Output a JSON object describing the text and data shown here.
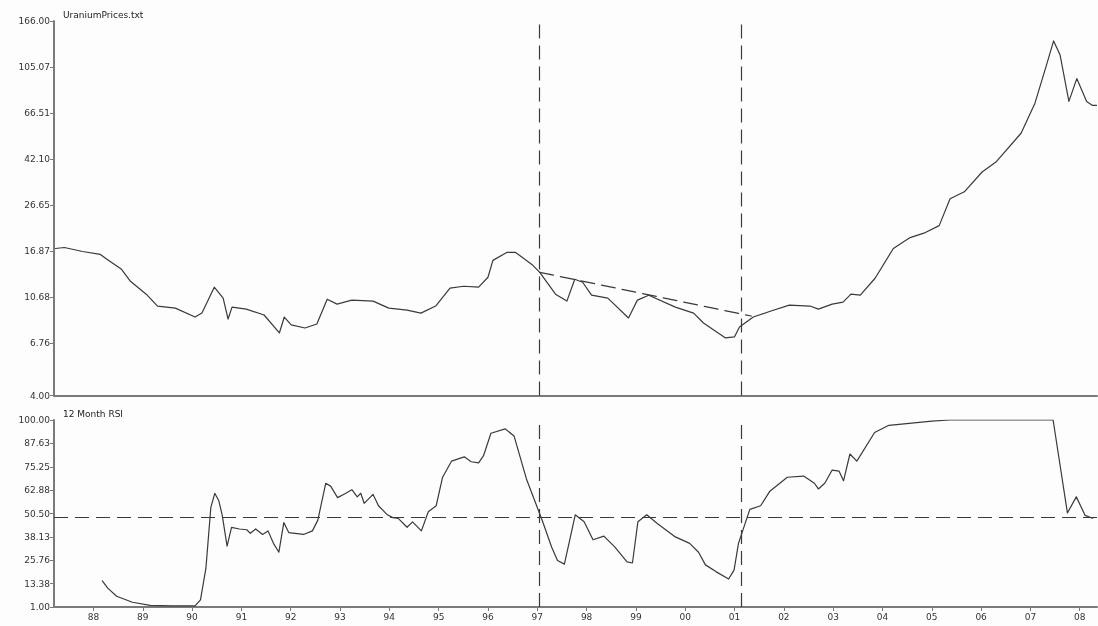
{
  "chart_data": [
    {
      "type": "line",
      "title": "UraniumPrices.txt",
      "log": "y",
      "grid": false,
      "marker": "none",
      "tick_labels": "y",
      "xlim": [
        1987.2,
        2008.35
      ],
      "ylim": [
        4,
        166
      ],
      "yticks": [
        {
          "value": 4,
          "label": "4.00"
        },
        {
          "value": 6.76,
          "label": "6.76"
        },
        {
          "value": 10.68,
          "label": "10.68"
        },
        {
          "value": 16.87,
          "label": "16.87"
        },
        {
          "value": 26.65,
          "label": "26.65"
        },
        {
          "value": 42.1,
          "label": "42.10"
        },
        {
          "value": 66.51,
          "label": "66.51"
        },
        {
          "value": 105.07,
          "label": "105.07"
        },
        {
          "value": 166,
          "label": "166.00"
        }
      ],
      "x": [
        1987.23,
        1987.41,
        1987.78,
        1988.14,
        1988.28,
        1988.57,
        1988.75,
        1989.07,
        1989.3,
        1989.66,
        1990.06,
        1990.2,
        1990.45,
        1990.63,
        1990.73,
        1990.81,
        1991.1,
        1991.46,
        1991.77,
        1991.87,
        1992.01,
        1992.29,
        1992.53,
        1992.74,
        1992.94,
        1993.24,
        1993.67,
        1993.99,
        1994.36,
        1994.64,
        1994.94,
        1995.23,
        1995.51,
        1995.81,
        1996.0,
        1996.1,
        1996.38,
        1996.56,
        1996.89,
        1997.05,
        1997.37,
        1997.6,
        1997.76,
        1997.92,
        1998.1,
        1998.43,
        1998.85,
        1999.03,
        1999.26,
        1999.8,
        2000.17,
        2000.37,
        2000.81,
        2001.0,
        2001.1,
        2001.38,
        2001.74,
        2002.11,
        2002.53,
        2002.7,
        2002.98,
        2003.2,
        2003.36,
        2003.55,
        2003.85,
        2004.22,
        2004.56,
        2004.87,
        2005.15,
        2005.37,
        2005.66,
        2006.02,
        2006.3,
        2006.81,
        2007.09,
        2007.31,
        2007.47,
        2007.6,
        2007.78,
        2007.94,
        2008.14,
        2008.26,
        2008.34
      ],
      "series": [
        {
          "color": "#3a3a3a",
          "values": [
            17.27,
            17.44,
            16.76,
            16.28,
            15.49,
            14.03,
            12.46,
            10.96,
            9.74,
            9.54,
            8.73,
            9.08,
            11.75,
            10.54,
            8.56,
            9.64,
            9.45,
            8.91,
            7.45,
            8.73,
            8.07,
            7.83,
            8.15,
            10.43,
            9.93,
            10.33,
            10.23,
            9.54,
            9.36,
            9.08,
            9.74,
            11.63,
            11.86,
            11.75,
            12.97,
            15.34,
            16.6,
            16.6,
            14.74,
            13.62,
            10.96,
            10.23,
            12.71,
            12.34,
            10.85,
            10.54,
            8.65,
            10.33,
            10.85,
            9.64,
            9.08,
            8.23,
            7.1,
            7.17,
            7.91,
            8.73,
            9.27,
            9.83,
            9.74,
            9.45,
            9.93,
            10.13,
            10.96,
            10.85,
            12.84,
            17.27,
            19.25,
            20.23,
            21.68,
            28.31,
            30.34,
            36.96,
            40.8,
            54.35,
            73.1,
            104.4,
            136.2,
            118.7,
            74.6,
            93.6,
            74.6,
            71.7,
            71.7
          ]
        },
        {
          "type": "line",
          "line_style": "dashed",
          "color": "#3a3a3a",
          "x": [
            1997.05,
            2001.34
          ],
          "values": [
            13.62,
            8.82
          ]
        }
      ],
      "ref_lines": [
        {
          "axis": "x",
          "value": 1997.05,
          "line_style": "dashed",
          "color": "#3a3a3a"
        },
        {
          "axis": "x",
          "value": 2001.14,
          "line_style": "dashed",
          "color": "#3a3a3a"
        }
      ]
    },
    {
      "type": "line",
      "title": "12 Month RSI",
      "grid": false,
      "marker": "none",
      "xlim": [
        1987.2,
        2008.35
      ],
      "xticks": [
        {
          "value": 1988,
          "label": "88"
        },
        {
          "value": 1989,
          "label": "89"
        },
        {
          "value": 1990,
          "label": "90"
        },
        {
          "value": 1991,
          "label": "91"
        },
        {
          "value": 1992,
          "label": "92"
        },
        {
          "value": 1993,
          "label": "93"
        },
        {
          "value": 1994,
          "label": "94"
        },
        {
          "value": 1995,
          "label": "95"
        },
        {
          "value": 1996,
          "label": "96"
        },
        {
          "value": 1997,
          "label": "97"
        },
        {
          "value": 1998,
          "label": "98"
        },
        {
          "value": 1999,
          "label": "99"
        },
        {
          "value": 2000,
          "label": "00"
        },
        {
          "value": 2001,
          "label": "01"
        },
        {
          "value": 2002,
          "label": "02"
        },
        {
          "value": 2003,
          "label": "03"
        },
        {
          "value": 2004,
          "label": "04"
        },
        {
          "value": 2005,
          "label": "05"
        },
        {
          "value": 2006,
          "label": "06"
        },
        {
          "value": 2007,
          "label": "07"
        },
        {
          "value": 2008,
          "label": "08"
        }
      ],
      "ylim": [
        1,
        100
      ],
      "yticks": [
        {
          "value": 1,
          "label": "1.00"
        },
        {
          "value": 13.38,
          "label": "13.38"
        },
        {
          "value": 25.76,
          "label": "25.76"
        },
        {
          "value": 38.13,
          "label": "38.13"
        },
        {
          "value": 50.5,
          "label": "50.50"
        },
        {
          "value": 62.88,
          "label": "62.88"
        },
        {
          "value": 75.25,
          "label": "75.25"
        },
        {
          "value": 87.63,
          "label": "87.63"
        },
        {
          "value": 100,
          "label": "100.00"
        }
      ],
      "x": [
        1988.18,
        1988.29,
        1988.47,
        1988.79,
        1989.15,
        1989.59,
        1990.06,
        1990.17,
        1990.28,
        1990.38,
        1990.46,
        1990.54,
        1990.61,
        1990.71,
        1990.8,
        1990.96,
        1991.11,
        1991.18,
        1991.29,
        1991.43,
        1991.54,
        1991.65,
        1991.76,
        1991.86,
        1991.96,
        1992.26,
        1992.44,
        1992.55,
        1992.71,
        1992.81,
        1992.95,
        1993.09,
        1993.24,
        1993.35,
        1993.42,
        1993.49,
        1993.67,
        1993.78,
        1993.96,
        1994.07,
        1994.18,
        1994.36,
        1994.47,
        1994.65,
        1994.79,
        1994.95,
        1995.08,
        1995.26,
        1995.52,
        1995.66,
        1995.81,
        1995.91,
        1996.06,
        1996.35,
        1996.53,
        1996.78,
        1996.96,
        1997.11,
        1997.29,
        1997.41,
        1997.55,
        1997.77,
        1997.95,
        1998.13,
        1998.35,
        1998.57,
        1998.82,
        1998.93,
        1999.04,
        1999.22,
        1999.44,
        1999.8,
        2000.09,
        2000.27,
        2000.41,
        2000.63,
        2000.88,
        2000.99,
        2001.08,
        2001.31,
        2001.53,
        2001.71,
        2002.07,
        2002.4,
        2002.62,
        2002.7,
        2002.83,
        2002.98,
        2003.12,
        2003.21,
        2003.34,
        2003.48,
        2003.84,
        2004.13,
        2005.0,
        2005.36,
        2007.46,
        2007.75,
        2007.93,
        2008.11,
        2008.26
      ],
      "series": [
        {
          "color": "#3a3a3a",
          "values": [
            14.8,
            11.0,
            6.7,
            3.5,
            1.9,
            1.6,
            1.6,
            4.8,
            21.4,
            53.6,
            61.2,
            57.4,
            49.8,
            33.2,
            43.2,
            42.3,
            41.9,
            40.0,
            42.3,
            39.4,
            41.3,
            34.7,
            30.0,
            45.7,
            40.4,
            39.4,
            41.3,
            47.0,
            66.5,
            65.0,
            58.9,
            60.8,
            63.1,
            59.3,
            61.2,
            55.9,
            60.6,
            54.6,
            49.8,
            48.3,
            47.9,
            43.2,
            46.1,
            41.3,
            51.4,
            54.6,
            69.7,
            78.2,
            80.5,
            77.9,
            77.3,
            81.1,
            93.0,
            95.3,
            91.5,
            68.8,
            56.5,
            46.1,
            32.8,
            25.6,
            23.7,
            49.8,
            46.1,
            36.6,
            38.5,
            32.8,
            24.9,
            24.3,
            46.1,
            49.8,
            45.1,
            38.1,
            34.7,
            30.0,
            23.3,
            19.6,
            15.8,
            20.5,
            34.7,
            52.7,
            54.6,
            62.1,
            69.7,
            70.3,
            66.5,
            63.5,
            66.5,
            73.5,
            72.9,
            67.8,
            82.0,
            78.2,
            93.4,
            97.2,
            99.4,
            100,
            100,
            50.8,
            59.3,
            49.5,
            48.0
          ]
        }
      ],
      "ref_lines": [
        {
          "axis": "x",
          "value": 1997.05,
          "line_style": "dashed",
          "color": "#3a3a3a"
        },
        {
          "axis": "x",
          "value": 2001.14,
          "line_style": "dashed",
          "color": "#3a3a3a"
        },
        {
          "axis": "y",
          "value": 48.5,
          "line_style": "dashed",
          "color": "#3a3a3a"
        }
      ]
    }
  ]
}
